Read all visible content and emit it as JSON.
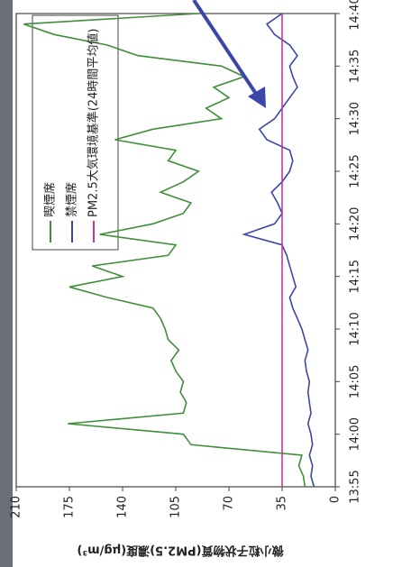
{
  "chart_data": {
    "type": "line",
    "ylabel": "微小粒子状物質(PM2.5)濃度(μg/m³)",
    "xlim": [
      835,
      880
    ],
    "xticks": [
      {
        "value": 835,
        "label": "13:55"
      },
      {
        "value": 840,
        "label": "14:00"
      },
      {
        "value": 845,
        "label": "14:05"
      },
      {
        "value": 850,
        "label": "14:10"
      },
      {
        "value": 855,
        "label": "14:15"
      },
      {
        "value": 860,
        "label": "14:20"
      },
      {
        "value": 865,
        "label": "14:25"
      },
      {
        "value": 870,
        "label": "14:30"
      },
      {
        "value": 875,
        "label": "14:35"
      },
      {
        "value": 880,
        "label": "14:40"
      }
    ],
    "ylim": [
      0,
      210
    ],
    "yticks": [
      0,
      35,
      70,
      105,
      140,
      175,
      210
    ],
    "legend": "upper right",
    "series": [
      {
        "name": "喫煙席",
        "color": "#3f8f3a",
        "x": [
          835,
          836,
          837,
          838,
          839,
          840,
          841,
          842,
          843,
          844,
          845,
          846,
          847,
          848,
          849,
          850,
          851,
          852,
          853,
          854,
          855,
          856,
          857,
          858,
          859,
          860,
          861,
          862,
          863,
          864,
          865,
          866,
          867,
          868,
          869,
          870,
          871,
          872,
          873,
          874,
          875,
          876,
          877,
          878,
          879,
          880
        ],
        "values": [
          20,
          21,
          24,
          22,
          95,
          100,
          176,
          100,
          98,
          102,
          100,
          105,
          108,
          103,
          110,
          112,
          115,
          120,
          150,
          175,
          140,
          160,
          110,
          105,
          155,
          120,
          100,
          95,
          115,
          100,
          90,
          110,
          105,
          145,
          120,
          75,
          85,
          70,
          80,
          60,
          75,
          130,
          150,
          185,
          205,
          90
        ]
      },
      {
        "name": "禁煙席",
        "color": "#3a46a8",
        "x": [
          835,
          836,
          837,
          838,
          839,
          840,
          841,
          842,
          843,
          844,
          845,
          846,
          847,
          848,
          849,
          850,
          851,
          852,
          853,
          854,
          855,
          856,
          857,
          858,
          859,
          860,
          861,
          862,
          863,
          864,
          865,
          866,
          867,
          868,
          869,
          870,
          871,
          872,
          873,
          874,
          875,
          876,
          877,
          878,
          879,
          880
        ],
        "values": [
          14,
          16,
          15,
          17,
          15,
          16,
          18,
          16,
          17,
          18,
          17,
          19,
          20,
          18,
          20,
          22,
          25,
          28,
          30,
          26,
          28,
          30,
          32,
          35,
          60,
          40,
          35,
          38,
          42,
          35,
          30,
          28,
          30,
          45,
          50,
          40,
          35,
          30,
          25,
          28,
          30,
          25,
          30,
          40,
          45,
          35
        ]
      },
      {
        "name": "PM2.5大気環境基準(24時間平均値)",
        "color": "#c0399a",
        "x": [
          835,
          880
        ],
        "values": [
          35,
          35
        ]
      }
    ]
  }
}
